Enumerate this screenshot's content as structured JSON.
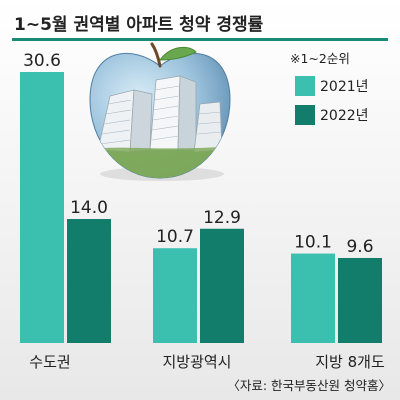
{
  "chart_data": {
    "type": "bar",
    "title": "1~5월 권역별 아파트 청약 경쟁률",
    "note": "※1~2순위",
    "categories": [
      "수도권",
      "지방광역시",
      "지방 8개도"
    ],
    "series": [
      {
        "name": "2021년",
        "values": [
          30.6,
          10.7,
          10.1
        ]
      },
      {
        "name": "2022년",
        "values": [
          14.0,
          12.9,
          9.6
        ]
      }
    ],
    "value_labels": [
      [
        "30.6",
        "10.7",
        "10.1"
      ],
      [
        "14.0",
        "12.9",
        "9.6"
      ]
    ],
    "ylim": [
      0,
      33
    ],
    "grid": false,
    "legend_position": "top-right",
    "source": "〈자료: 한국부동산원 청약홈〉",
    "colors": {
      "series_2021": "#3bbfae",
      "series_2022": "#137d6c",
      "title_bar": "#1a8a78",
      "background_top": "#ffffff",
      "background_bottom": "#e8e8e8"
    }
  }
}
